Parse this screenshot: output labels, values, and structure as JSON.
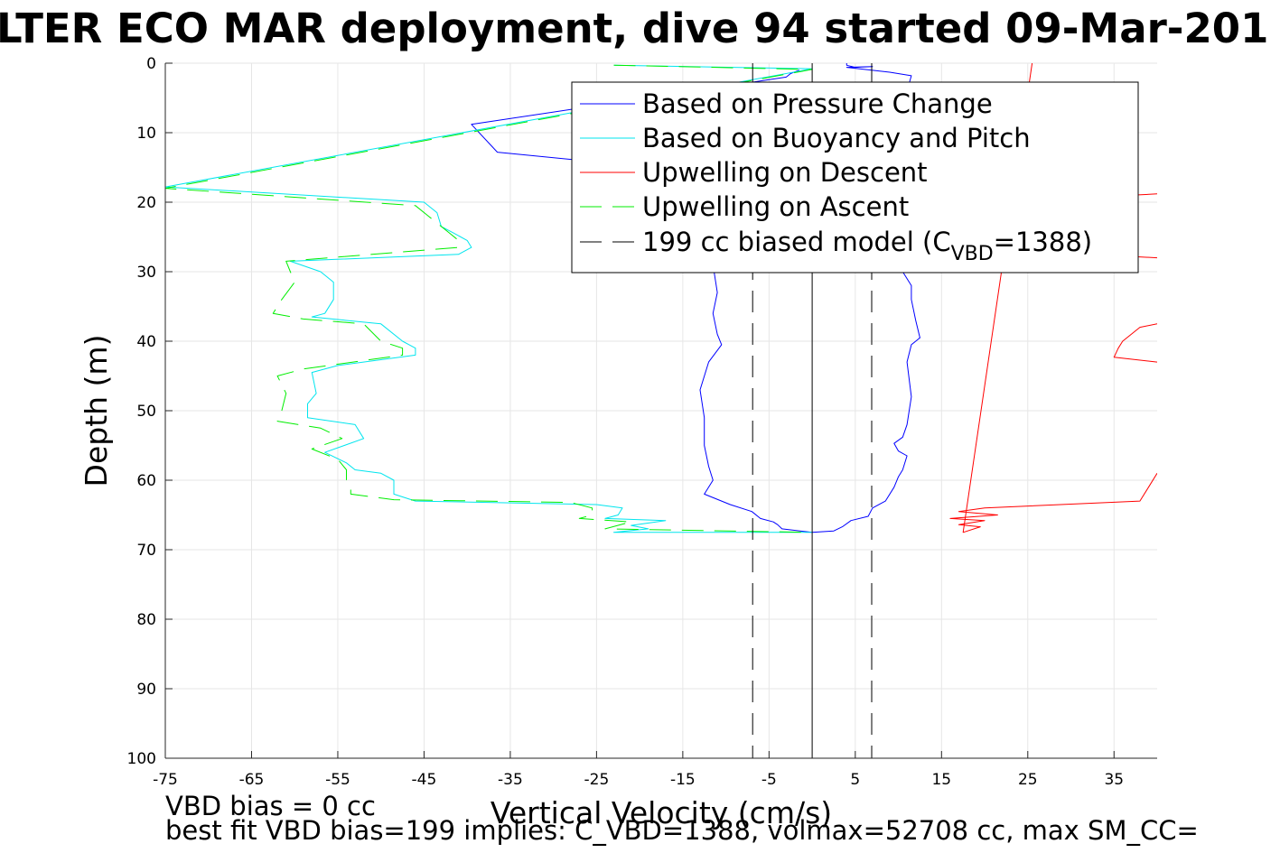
{
  "chart_data": {
    "type": "line",
    "title": "LTER ECO MAR deployment, dive 94 started 09-Mar-201",
    "xlabel": "Vertical Velocity (cm/s)",
    "ylabel": "Depth (m)",
    "xlim": [
      -75,
      40
    ],
    "ylim": [
      0,
      100
    ],
    "y_reversed": true,
    "grid": true,
    "legend_position": "top-right",
    "x_ticks": [
      "-75",
      "-65",
      "-55",
      "-45",
      "-35",
      "-25",
      "-15",
      "-5",
      "5",
      "15",
      "25",
      "35"
    ],
    "y_ticks": [
      "0",
      "10",
      "20",
      "30",
      "40",
      "50",
      "60",
      "70",
      "80",
      "90",
      "100"
    ],
    "legend": {
      "pressure": "Based on Pressure Change",
      "buoyancy": "Based on Buoyancy and Pitch",
      "up_descent": "Upwelling on Descent",
      "up_ascent": "Upwelling on Ascent",
      "model_prefix": "199 cc biased model (C",
      "model_sub": "VBD",
      "model_suffix": "=1388)"
    },
    "series": [
      {
        "name": "Based on Pressure Change",
        "color": "#0000ff",
        "style": "solid",
        "points": [
          [
            -1.5,
            1
          ],
          [
            -2.5,
            1.5
          ],
          [
            -3,
            2
          ],
          [
            -39.5,
            8.8
          ],
          [
            -36.5,
            12.8
          ],
          [
            -14.5,
            15.5
          ],
          [
            -11,
            16.5
          ],
          [
            -11,
            22
          ],
          [
            -11.5,
            29
          ],
          [
            -11,
            33
          ],
          [
            -11.5,
            36
          ],
          [
            -11,
            39
          ],
          [
            -10.5,
            40.5
          ],
          [
            -12,
            43
          ],
          [
            -13,
            47
          ],
          [
            -12.5,
            51
          ],
          [
            -12.5,
            55
          ],
          [
            -12,
            58
          ],
          [
            -11.5,
            60
          ],
          [
            -12.5,
            62
          ],
          [
            -9.5,
            63.5
          ],
          [
            -7,
            64.5
          ],
          [
            -6,
            65.5
          ],
          [
            -4.5,
            66
          ],
          [
            -4,
            66.4
          ],
          [
            -3.5,
            67
          ],
          [
            0,
            67.5
          ],
          [
            2.5,
            67.3
          ],
          [
            3.5,
            66.7
          ],
          [
            4.5,
            65.8
          ],
          [
            6.5,
            65.2
          ],
          [
            7,
            64
          ],
          [
            8.5,
            63
          ],
          [
            9.5,
            61
          ],
          [
            10,
            59.5
          ],
          [
            10.5,
            58.5
          ],
          [
            11,
            56.5
          ],
          [
            10,
            55.8
          ],
          [
            9.5,
            54.7
          ],
          [
            10.5,
            53.8
          ],
          [
            11,
            52
          ],
          [
            11.5,
            48
          ],
          [
            11,
            43
          ],
          [
            11.5,
            40.5
          ],
          [
            12.5,
            39.5
          ],
          [
            12,
            37
          ],
          [
            11.5,
            34
          ],
          [
            11.5,
            32
          ],
          [
            10.5,
            30
          ],
          [
            10,
            26
          ],
          [
            10.5,
            20
          ],
          [
            11,
            15
          ],
          [
            14,
            12
          ],
          [
            11,
            9
          ],
          [
            11,
            4
          ],
          [
            11.5,
            1.8
          ],
          [
            9,
            1.3
          ],
          [
            4,
            0.6
          ],
          [
            7,
            0.5
          ],
          [
            5,
            0.6
          ],
          [
            4,
            0.3
          ],
          [
            4,
            0
          ]
        ]
      },
      {
        "name": "Based on Buoyancy and Pitch",
        "color": "#00e5ee",
        "style": "solid",
        "points": [
          [
            -23,
            0.3
          ],
          [
            0,
            0.8
          ],
          [
            -75,
            17.8
          ],
          [
            -45,
            20
          ],
          [
            -43.5,
            21.5
          ],
          [
            -43,
            23.5
          ],
          [
            -41.5,
            24.5
          ],
          [
            -40,
            25.5
          ],
          [
            -39.5,
            26.5
          ],
          [
            -41,
            27.5
          ],
          [
            -60.5,
            28.5
          ],
          [
            -57,
            30
          ],
          [
            -55.5,
            31.5
          ],
          [
            -55.5,
            34
          ],
          [
            -56.5,
            36
          ],
          [
            -58,
            36.5
          ],
          [
            -50,
            37.5
          ],
          [
            -47.5,
            40
          ],
          [
            -46,
            41
          ],
          [
            -46,
            42
          ],
          [
            -55,
            43.5
          ],
          [
            -58,
            44.5
          ],
          [
            -57.5,
            47.5
          ],
          [
            -58.5,
            49
          ],
          [
            -58.5,
            51
          ],
          [
            -53,
            52
          ],
          [
            -52,
            54
          ],
          [
            -56.5,
            56
          ],
          [
            -54,
            57.5
          ],
          [
            -53,
            58.5
          ],
          [
            -50,
            59
          ],
          [
            -48.5,
            60
          ],
          [
            -48.5,
            62
          ],
          [
            -46,
            63
          ],
          [
            -25,
            63.5
          ],
          [
            -22,
            64
          ],
          [
            -22.5,
            65
          ],
          [
            -24,
            65.5
          ],
          [
            -17,
            65.8
          ],
          [
            -21,
            66.5
          ],
          [
            -19,
            67
          ],
          [
            -23,
            67.5
          ],
          [
            0,
            67.5
          ]
        ]
      },
      {
        "name": "Upwelling on Descent",
        "color": "#ff0000",
        "style": "solid",
        "points": [
          [
            25.5,
            0
          ],
          [
            17.5,
            67.5
          ],
          [
            19.5,
            66.7
          ],
          [
            17,
            66.4
          ],
          [
            20,
            65.8
          ],
          [
            16,
            65.5
          ],
          [
            21.5,
            65
          ],
          [
            17,
            64.5
          ],
          [
            20,
            64
          ],
          [
            38,
            63
          ],
          [
            39,
            61
          ],
          [
            40,
            59
          ]
        ]
      },
      {
        "name": "Upwelling on Descent 2",
        "color": "#ff0000",
        "style": "solid",
        "points": [
          [
            40,
            37.5
          ],
          [
            38,
            38
          ],
          [
            36,
            40
          ],
          [
            35.5,
            41
          ],
          [
            35,
            42.3
          ],
          [
            40,
            43
          ]
        ]
      },
      {
        "name": "Upwelling on Descent 3",
        "color": "#ff0000",
        "style": "solid",
        "points": [
          [
            40,
            18.8
          ],
          [
            37,
            19
          ]
        ]
      },
      {
        "name": "Upwelling on Descent 4",
        "color": "#ff0000",
        "style": "solid",
        "points": [
          [
            40,
            28
          ],
          [
            37,
            27.8
          ]
        ]
      },
      {
        "name": "Upwelling on Ascent",
        "color": "#00ee00",
        "style": "dashed",
        "points": [
          [
            -23,
            0.3
          ],
          [
            0,
            0.9
          ],
          [
            -75,
            18
          ],
          [
            -46,
            20.5
          ],
          [
            -44.5,
            22
          ],
          [
            -43,
            23.5
          ],
          [
            -42,
            24.5
          ],
          [
            -41,
            25.5
          ],
          [
            -41,
            26.5
          ],
          [
            -61,
            28.5
          ],
          [
            -60.5,
            30
          ],
          [
            -60,
            31.5
          ],
          [
            -61.5,
            34
          ],
          [
            -62.5,
            36
          ],
          [
            -59,
            36.8
          ],
          [
            -52,
            37.5
          ],
          [
            -50,
            40
          ],
          [
            -47.5,
            41
          ],
          [
            -47.5,
            42
          ],
          [
            -59,
            44
          ],
          [
            -62,
            45
          ],
          [
            -61,
            47.5
          ],
          [
            -61.5,
            50
          ],
          [
            -62,
            51.5
          ],
          [
            -57,
            52.5
          ],
          [
            -54.5,
            54
          ],
          [
            -58,
            55.5
          ],
          [
            -55,
            57
          ],
          [
            -54,
            58.5
          ],
          [
            -54,
            60
          ],
          [
            -53.5,
            61
          ],
          [
            -53.5,
            62
          ],
          [
            -48.5,
            62.8
          ],
          [
            -28,
            63.2
          ],
          [
            -25.5,
            64
          ],
          [
            -25.5,
            65
          ],
          [
            -27,
            65.5
          ],
          [
            -21,
            66
          ],
          [
            -24,
            67
          ],
          [
            0,
            67.5
          ]
        ]
      },
      {
        "name": "199 cc biased model (CVBD=1388)",
        "color": "#000000",
        "style": "dashed",
        "points": [
          [
            -6.9,
            0
          ],
          [
            -6.9,
            100
          ]
        ]
      },
      {
        "name": "199 cc biased model (CVBD=1388) 2",
        "color": "#000000",
        "style": "dashed",
        "points": [
          [
            6.9,
            0
          ],
          [
            6.9,
            100
          ]
        ]
      },
      {
        "name": "zero reference",
        "color": "#000000",
        "style": "solid",
        "points": [
          [
            0,
            0
          ],
          [
            0,
            100
          ]
        ]
      }
    ]
  },
  "footer": {
    "line1": "VBD bias = 0 cc",
    "line2": "best fit VBD bias=199 implies: C_VBD=1388, volmax=52708 cc, max SM_CC="
  }
}
